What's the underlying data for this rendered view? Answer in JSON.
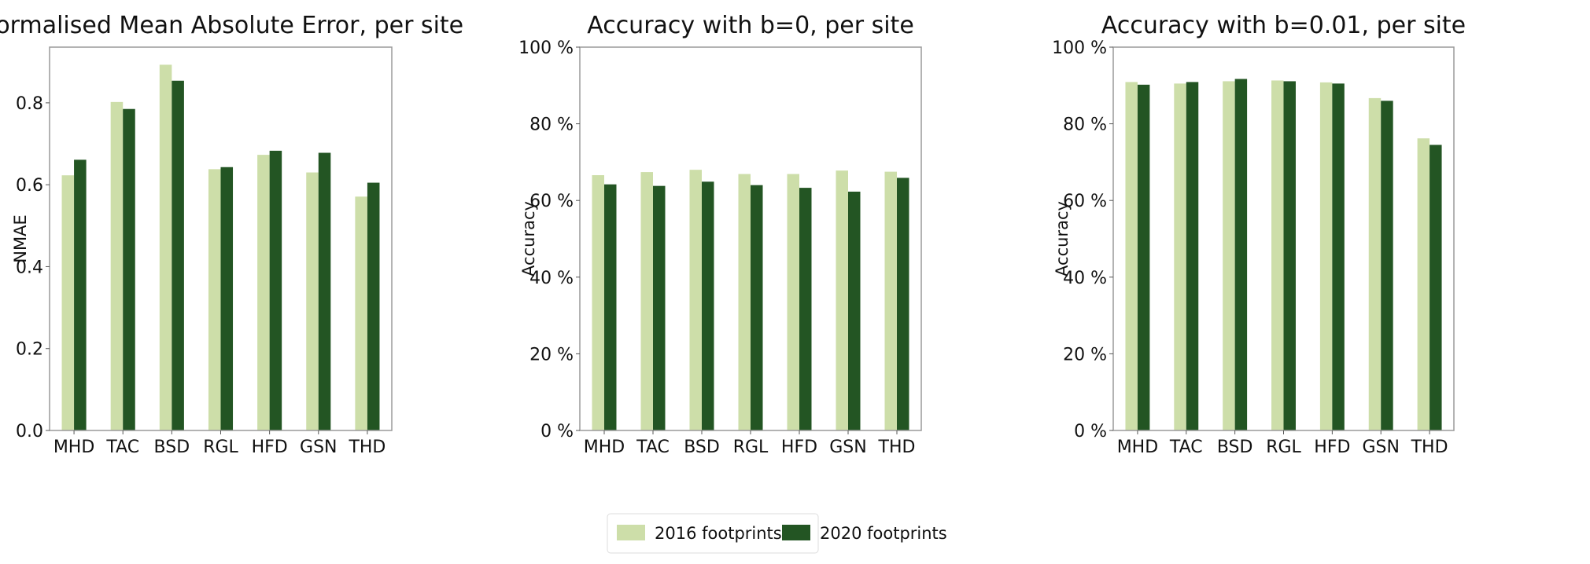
{
  "colors": {
    "s2016": "#cddea9",
    "s2020": "#235523",
    "axis": "#9a9a9a"
  },
  "legend": {
    "items": [
      "2016 footprints",
      "2020 footprints"
    ],
    "placement": "bottom-center"
  },
  "chart_data": [
    {
      "type": "bar",
      "title": "Normalised Mean Absolute Error, per site",
      "xlabel": "",
      "ylabel": "NMAE",
      "ylim": [
        0,
        0.936
      ],
      "yticks": [
        0,
        0.2,
        0.4,
        0.6,
        0.8
      ],
      "ytick_labels": [
        "0.0",
        "0.2",
        "0.4",
        "0.6",
        "0.8"
      ],
      "categories": [
        "MHD",
        "TAC",
        "BSD",
        "RGL",
        "HFD",
        "GSN",
        "THD"
      ],
      "series": [
        {
          "name": "2016 footprints",
          "values": [
            0.623,
            0.802,
            0.893,
            0.638,
            0.673,
            0.63,
            0.571
          ]
        },
        {
          "name": "2020 footprints",
          "values": [
            0.661,
            0.785,
            0.854,
            0.643,
            0.683,
            0.678,
            0.605
          ]
        }
      ]
    },
    {
      "type": "bar",
      "title": "Accuracy with b=0, per site",
      "xlabel": "",
      "ylabel": "Accuracy",
      "ylim": [
        0,
        100
      ],
      "yticks": [
        0,
        20,
        40,
        60,
        80,
        100
      ],
      "ytick_labels": [
        "0 %",
        "20 %",
        "40 %",
        "60 %",
        "80 %",
        "100 %"
      ],
      "categories": [
        "MHD",
        "TAC",
        "BSD",
        "RGL",
        "HFD",
        "GSN",
        "THD"
      ],
      "series": [
        {
          "name": "2016 footprints",
          "values": [
            66.6,
            67.4,
            68.0,
            66.9,
            66.9,
            67.8,
            67.5
          ]
        },
        {
          "name": "2020 footprints",
          "values": [
            64.2,
            63.8,
            64.9,
            64.0,
            63.3,
            62.3,
            65.9
          ]
        }
      ]
    },
    {
      "type": "bar",
      "title": "Accuracy with b=0.01, per site",
      "xlabel": "",
      "ylabel": "Accuracy",
      "ylim": [
        0,
        100
      ],
      "yticks": [
        0,
        20,
        40,
        60,
        80,
        100
      ],
      "ytick_labels": [
        "0 %",
        "20 %",
        "40 %",
        "60 %",
        "80 %",
        "100 %"
      ],
      "categories": [
        "MHD",
        "TAC",
        "BSD",
        "RGL",
        "HFD",
        "GSN",
        "THD"
      ],
      "series": [
        {
          "name": "2016 footprints",
          "values": [
            90.9,
            90.5,
            91.1,
            91.3,
            90.8,
            86.7,
            76.2
          ]
        },
        {
          "name": "2020 footprints",
          "values": [
            90.2,
            90.9,
            91.7,
            91.1,
            90.5,
            86.0,
            74.5
          ]
        }
      ]
    }
  ]
}
